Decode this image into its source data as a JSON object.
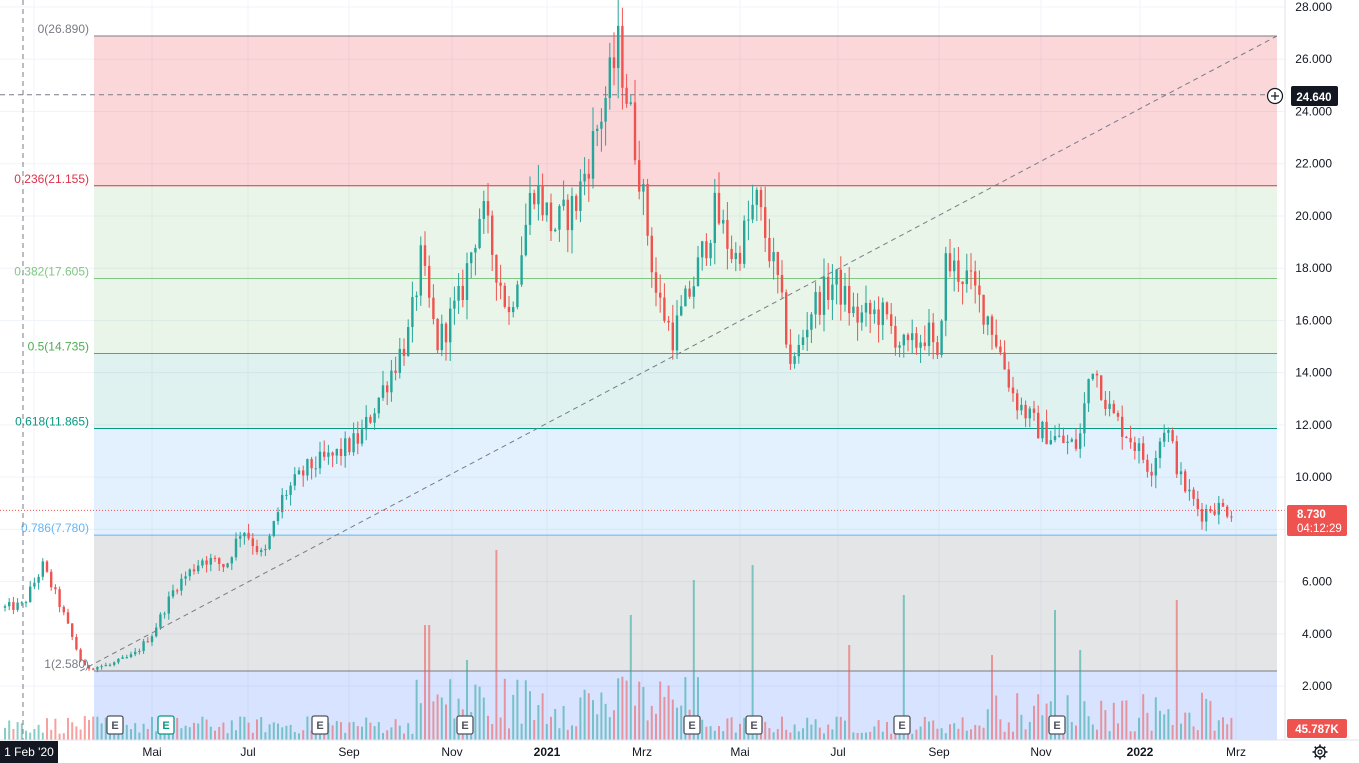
{
  "chart_data": {
    "type": "candlestick",
    "price_axis": {
      "ticks": [
        "28.000",
        "26.000",
        "24.000",
        "22.000",
        "20.000",
        "18.000",
        "16.000",
        "14.000",
        "12.000",
        "10.000",
        "8.000",
        "6.000",
        "4.000",
        "2.000"
      ],
      "min": 0,
      "max": 28.5
    },
    "time_axis": {
      "ticks": [
        "rz",
        "Mai",
        "Jul",
        "Sep",
        "Nov",
        "2021",
        "Mrz",
        "Mai",
        "Jul",
        "Sep",
        "Nov",
        "2022",
        "Mrz"
      ],
      "bold": [
        "2021",
        "2022"
      ]
    },
    "fibonacci": [
      {
        "ratio": 0,
        "price": 26.89,
        "label": "0(26.890)",
        "color": "#787b86"
      },
      {
        "ratio": 0.236,
        "price": 21.155,
        "label": "0.236(21.155)",
        "color": "#e0314a"
      },
      {
        "ratio": 0.382,
        "price": 17.605,
        "label": "0.382(17.605)",
        "color": "#81c784"
      },
      {
        "ratio": 0.5,
        "price": 14.735,
        "label": "0.5(14.735)",
        "color": "#4caf50"
      },
      {
        "ratio": 0.618,
        "price": 11.865,
        "label": "0.618(11.865)",
        "color": "#089981"
      },
      {
        "ratio": 0.786,
        "price": 7.78,
        "label": "0.786(7.780)",
        "color": "#64b5f6"
      },
      {
        "ratio": 1,
        "price": 2.58,
        "label": "1(2.580)",
        "color": "#787b86"
      }
    ],
    "trend_line": {
      "from": {
        "date": "2020-03-18",
        "price": 2.58
      },
      "to": {
        "date": "2022-03-25",
        "price": 26.89
      }
    },
    "crosshair": {
      "price": "24.640"
    },
    "last_price": {
      "value": "8.730",
      "countdown": "04:12:29",
      "color": "#ef5350"
    },
    "volume_last": "45.787K",
    "date_badge": "1 Feb '20",
    "earnings_markers": [
      "E",
      "E",
      "E",
      "E",
      "E",
      "E",
      "E",
      "E",
      "E"
    ],
    "price_path": [
      [
        "2020-02-01",
        5.0
      ],
      [
        "2020-02-12",
        5.1
      ],
      [
        "2020-02-24",
        6.6
      ],
      [
        "2020-03-05",
        5.2
      ],
      [
        "2020-03-14",
        3.7
      ],
      [
        "2020-03-20",
        2.7
      ],
      [
        "2020-04-05",
        2.8
      ],
      [
        "2020-04-20",
        3.2
      ],
      [
        "2020-05-01",
        4.0
      ],
      [
        "2020-05-15",
        5.8
      ],
      [
        "2020-06-01",
        6.9
      ],
      [
        "2020-06-15",
        6.6
      ],
      [
        "2020-06-25",
        8.1
      ],
      [
        "2020-07-08",
        6.9
      ],
      [
        "2020-07-20",
        9.3
      ],
      [
        "2020-08-05",
        10.4
      ],
      [
        "2020-08-20",
        10.8
      ],
      [
        "2020-09-05",
        11.5
      ],
      [
        "2020-09-25",
        14.2
      ],
      [
        "2020-10-05",
        15.5
      ],
      [
        "2020-10-12",
        18.3
      ],
      [
        "2020-10-22",
        15.1
      ],
      [
        "2020-11-05",
        16.8
      ],
      [
        "2020-11-18",
        20.3
      ],
      [
        "2020-12-05",
        16.2
      ],
      [
        "2020-12-20",
        21.3
      ],
      [
        "2021-01-01",
        19.5
      ],
      [
        "2021-01-15",
        20.5
      ],
      [
        "2021-02-01",
        24.3
      ],
      [
        "2021-02-10",
        26.5
      ],
      [
        "2021-02-22",
        22.0
      ],
      [
        "2021-03-05",
        17.0
      ],
      [
        "2021-03-15",
        15.4
      ],
      [
        "2021-03-28",
        17.5
      ],
      [
        "2021-04-10",
        20.2
      ],
      [
        "2021-04-22",
        18.3
      ],
      [
        "2021-05-05",
        20.6
      ],
      [
        "2021-05-18",
        17.5
      ],
      [
        "2021-05-27",
        14.1
      ],
      [
        "2021-06-08",
        16.5
      ],
      [
        "2021-06-22",
        17.5
      ],
      [
        "2021-07-05",
        16.1
      ],
      [
        "2021-07-20",
        16.3
      ],
      [
        "2021-08-05",
        14.8
      ],
      [
        "2021-08-18",
        15.6
      ],
      [
        "2021-08-24",
        14.2
      ],
      [
        "2021-08-28",
        18.2
      ],
      [
        "2021-09-10",
        17.7
      ],
      [
        "2021-09-25",
        16.0
      ],
      [
        "2021-10-10",
        13.0
      ],
      [
        "2021-10-25",
        11.8
      ],
      [
        "2021-11-10",
        11.3
      ],
      [
        "2021-11-18",
        11.2
      ],
      [
        "2021-11-26",
        14.5
      ],
      [
        "2021-12-08",
        12.4
      ],
      [
        "2021-12-20",
        11.5
      ],
      [
        "2022-01-01",
        10.3
      ],
      [
        "2022-01-10",
        12.1
      ],
      [
        "2022-01-20",
        9.8
      ],
      [
        "2022-02-01",
        8.6
      ],
      [
        "2022-02-08",
        8.9
      ],
      [
        "2022-02-20",
        8.7
      ]
    ]
  }
}
